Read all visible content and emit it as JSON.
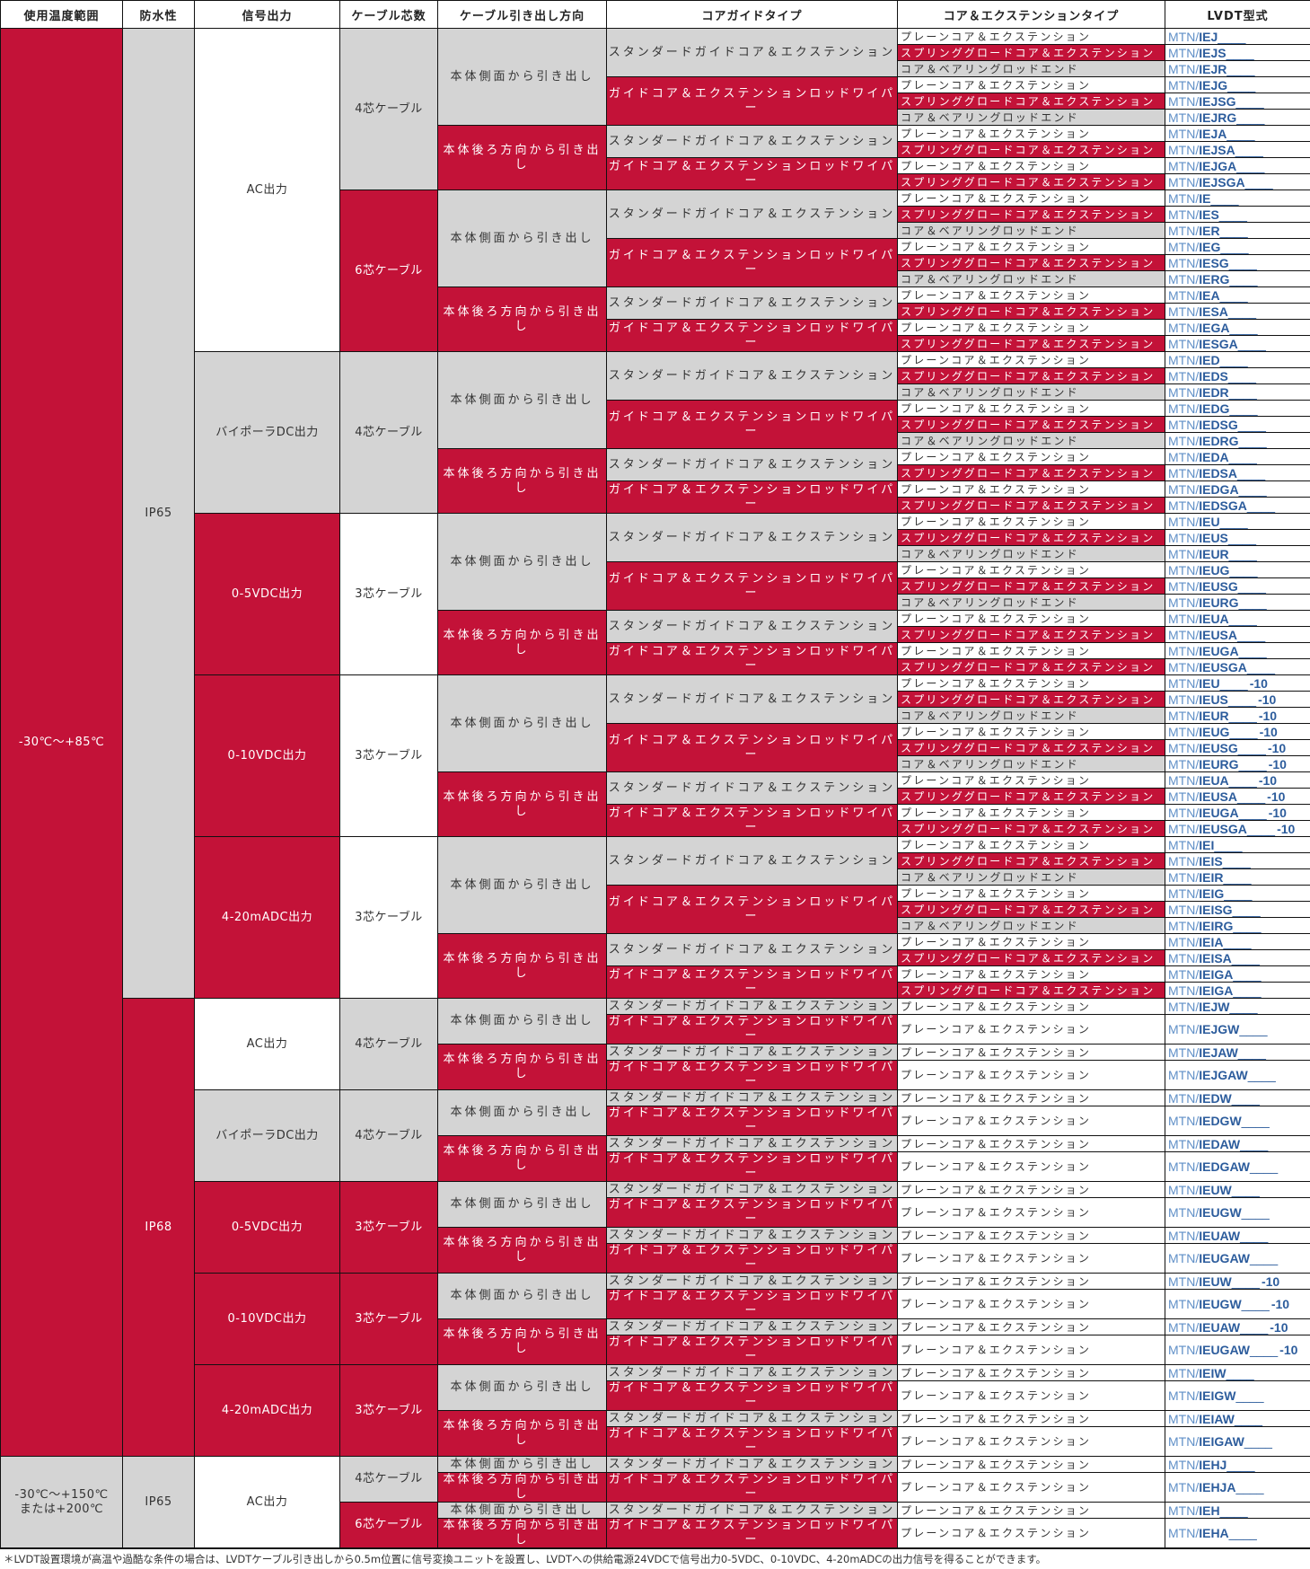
{
  "colors": {
    "red": "#C31238",
    "gray": "#D4D4D4",
    "white": "#FFFFFF"
  },
  "header": [
    "使用温度範囲",
    "防水性",
    "信号出力",
    "ケーブル芯数",
    "ケーブル引き出し方向",
    "コアガイドタイプ",
    "コア＆エクステンションタイプ",
    "LVDT型式"
  ],
  "labels": {
    "side": "本体側面から引き出し",
    "back": "本体後ろ方向から引き出し",
    "std": "スタンダードガイドコア＆エクステンション",
    "guide": "ガイドコア＆エクステンションロッドワイパー"
  },
  "label_colors": {
    "side": "gray",
    "back": "red",
    "std": "gray",
    "guide": "red"
  },
  "ext_types": {
    "P": "プレーンコア＆エクステンション",
    "S": "スプリンググロードコア＆エクステンション",
    "B": "コア＆ベアリングロッドエンド"
  },
  "ext_colors": {
    "P": "white",
    "S": "red",
    "B": "gray"
  },
  "model_prefix": "MTN/",
  "model_blank": "____",
  "columns": {
    "temperature": [
      [
        "-30℃～+85℃",
        80,
        "red"
      ],
      [
        "-30℃～+150℃\nまたは+200℃",
        4,
        "gray"
      ]
    ],
    "waterproof": [
      [
        "IP65",
        60,
        "gray"
      ],
      [
        "IP68",
        20,
        "red"
      ],
      [
        "IP65",
        4,
        "gray"
      ]
    ],
    "signal": [
      [
        "AC出力",
        20,
        "white"
      ],
      [
        "バイポーラDC出力",
        10,
        "gray"
      ],
      [
        "0-5VDC出力",
        10,
        "red"
      ],
      [
        "0-10VDC出力",
        10,
        "red"
      ],
      [
        "4-20mADC出力",
        10,
        "red"
      ],
      [
        "AC出力",
        4,
        "white"
      ],
      [
        "バイポーラDC出力",
        4,
        "gray"
      ],
      [
        "0-5VDC出力",
        4,
        "red"
      ],
      [
        "0-10VDC出力",
        4,
        "red"
      ],
      [
        "4-20mADC出力",
        4,
        "red"
      ],
      [
        "AC出力",
        4,
        "white"
      ]
    ],
    "cable": [
      [
        "4芯ケーブル",
        10,
        "gray"
      ],
      [
        "6芯ケーブル",
        10,
        "red"
      ],
      [
        "4芯ケーブル",
        10,
        "gray"
      ],
      [
        "3芯ケーブル",
        10,
        "white"
      ],
      [
        "3芯ケーブル",
        10,
        "white"
      ],
      [
        "3芯ケーブル",
        10,
        "white"
      ],
      [
        "4芯ケーブル",
        4,
        "gray"
      ],
      [
        "4芯ケーブル",
        4,
        "gray"
      ],
      [
        "3芯ケーブル",
        4,
        "red"
      ],
      [
        "3芯ケーブル",
        4,
        "red"
      ],
      [
        "3芯ケーブル",
        4,
        "red"
      ],
      [
        "4芯ケーブル",
        2,
        "gray"
      ],
      [
        "6芯ケーブル",
        2,
        "red"
      ]
    ],
    "direction": [
      [
        "side",
        6
      ],
      [
        "back",
        4
      ],
      [
        "side",
        6
      ],
      [
        "back",
        4
      ],
      [
        "side",
        6
      ],
      [
        "back",
        4
      ],
      [
        "side",
        6
      ],
      [
        "back",
        4
      ],
      [
        "side",
        6
      ],
      [
        "back",
        4
      ],
      [
        "side",
        6
      ],
      [
        "back",
        4
      ],
      [
        "side",
        2
      ],
      [
        "back",
        2
      ],
      [
        "side",
        2
      ],
      [
        "back",
        2
      ],
      [
        "side",
        2
      ],
      [
        "back",
        2
      ],
      [
        "side",
        2
      ],
      [
        "back",
        2
      ],
      [
        "side",
        2
      ],
      [
        "back",
        2
      ],
      [
        "side",
        1
      ],
      [
        "back",
        1
      ],
      [
        "side",
        1
      ],
      [
        "back",
        1
      ]
    ],
    "guide": [
      [
        "std",
        3
      ],
      [
        "guide",
        3
      ],
      [
        "std",
        2
      ],
      [
        "guide",
        2
      ],
      [
        "std",
        3
      ],
      [
        "guide",
        3
      ],
      [
        "std",
        2
      ],
      [
        "guide",
        2
      ],
      [
        "std",
        3
      ],
      [
        "guide",
        3
      ],
      [
        "std",
        2
      ],
      [
        "guide",
        2
      ],
      [
        "std",
        3
      ],
      [
        "guide",
        3
      ],
      [
        "std",
        2
      ],
      [
        "guide",
        2
      ],
      [
        "std",
        3
      ],
      [
        "guide",
        3
      ],
      [
        "std",
        2
      ],
      [
        "guide",
        2
      ],
      [
        "std",
        3
      ],
      [
        "guide",
        3
      ],
      [
        "std",
        2
      ],
      [
        "guide",
        2
      ],
      [
        "std",
        1
      ],
      [
        "guide",
        1
      ],
      [
        "std",
        1
      ],
      [
        "guide",
        1
      ],
      [
        "std",
        1
      ],
      [
        "guide",
        1
      ],
      [
        "std",
        1
      ],
      [
        "guide",
        1
      ],
      [
        "std",
        1
      ],
      [
        "guide",
        1
      ],
      [
        "std",
        1
      ],
      [
        "guide",
        1
      ],
      [
        "std",
        1
      ],
      [
        "guide",
        1
      ],
      [
        "std",
        1
      ],
      [
        "guide",
        1
      ],
      [
        "std",
        1
      ],
      [
        "guide",
        1
      ],
      [
        "std",
        1
      ],
      [
        "guide",
        1
      ],
      [
        "std",
        1
      ],
      [
        "guide",
        1
      ],
      [
        "std",
        1
      ],
      [
        "guide",
        1
      ],
      [
        "std",
        1
      ],
      [
        "guide",
        1
      ],
      [
        "std",
        1
      ],
      [
        "std",
        1
      ],
      [
        "std",
        1
      ],
      [
        "std",
        1
      ]
    ]
  },
  "rows": [
    [
      "P",
      "IEJ",
      ""
    ],
    [
      "S",
      "IEJS",
      ""
    ],
    [
      "B",
      "IEJR",
      ""
    ],
    [
      "P",
      "IEJG",
      ""
    ],
    [
      "S",
      "IEJSG",
      ""
    ],
    [
      "B",
      "IEJRG",
      ""
    ],
    [
      "P",
      "IEJA",
      ""
    ],
    [
      "S",
      "IEJSA",
      ""
    ],
    [
      "P",
      "IEJGA",
      ""
    ],
    [
      "S",
      "IEJSGA",
      ""
    ],
    [
      "P",
      "IE",
      ""
    ],
    [
      "S",
      "IES",
      ""
    ],
    [
      "B",
      "IER",
      ""
    ],
    [
      "P",
      "IEG",
      ""
    ],
    [
      "S",
      "IESG",
      ""
    ],
    [
      "B",
      "IERG",
      ""
    ],
    [
      "P",
      "IEA",
      ""
    ],
    [
      "S",
      "IESA",
      ""
    ],
    [
      "P",
      "IEGA",
      ""
    ],
    [
      "S",
      "IESGA",
      ""
    ],
    [
      "P",
      "IED",
      ""
    ],
    [
      "S",
      "IEDS",
      ""
    ],
    [
      "B",
      "IEDR",
      ""
    ],
    [
      "P",
      "IEDG",
      ""
    ],
    [
      "S",
      "IEDSG",
      ""
    ],
    [
      "B",
      "IEDRG",
      ""
    ],
    [
      "P",
      "IEDA",
      ""
    ],
    [
      "S",
      "IEDSA",
      ""
    ],
    [
      "P",
      "IEDGA",
      ""
    ],
    [
      "S",
      "IEDSGA",
      ""
    ],
    [
      "P",
      "IEU",
      ""
    ],
    [
      "S",
      "IEUS",
      ""
    ],
    [
      "B",
      "IEUR",
      ""
    ],
    [
      "P",
      "IEUG",
      ""
    ],
    [
      "S",
      "IEUSG",
      ""
    ],
    [
      "B",
      "IEURG",
      ""
    ],
    [
      "P",
      "IEUA",
      ""
    ],
    [
      "S",
      "IEUSA",
      ""
    ],
    [
      "P",
      "IEUGA",
      ""
    ],
    [
      "S",
      "IEUSGA",
      ""
    ],
    [
      "P",
      "IEU",
      "-10"
    ],
    [
      "S",
      "IEUS",
      "-10"
    ],
    [
      "B",
      "IEUR",
      "-10"
    ],
    [
      "P",
      "IEUG",
      "-10"
    ],
    [
      "S",
      "IEUSG",
      "-10"
    ],
    [
      "B",
      "IEURG",
      "-10"
    ],
    [
      "P",
      "IEUA",
      "-10"
    ],
    [
      "S",
      "IEUSA",
      "-10"
    ],
    [
      "P",
      "IEUGA",
      "-10"
    ],
    [
      "S",
      "IEUSGA",
      "-10"
    ],
    [
      "P",
      "IEI",
      ""
    ],
    [
      "S",
      "IEIS",
      ""
    ],
    [
      "B",
      "IEIR",
      ""
    ],
    [
      "P",
      "IEIG",
      ""
    ],
    [
      "S",
      "IEISG",
      ""
    ],
    [
      "B",
      "IEIRG",
      ""
    ],
    [
      "P",
      "IEIA",
      ""
    ],
    [
      "S",
      "IEISA",
      ""
    ],
    [
      "P",
      "IEIGA",
      ""
    ],
    [
      "S",
      "IEIGA",
      ""
    ],
    [
      "P",
      "IEJW",
      ""
    ],
    [
      "P",
      "IEJGW",
      ""
    ],
    [
      "P",
      "IEJAW",
      ""
    ],
    [
      "P",
      "IEJGAW",
      ""
    ],
    [
      "P",
      "IEDW",
      ""
    ],
    [
      "P",
      "IEDGW",
      ""
    ],
    [
      "P",
      "IEDAW",
      ""
    ],
    [
      "P",
      "IEDGAW",
      ""
    ],
    [
      "P",
      "IEUW",
      ""
    ],
    [
      "P",
      "IEUGW",
      ""
    ],
    [
      "P",
      "IEUAW",
      ""
    ],
    [
      "P",
      "IEUGAW",
      ""
    ],
    [
      "P",
      "IEUW",
      "-10"
    ],
    [
      "P",
      "IEUGW",
      "-10"
    ],
    [
      "P",
      "IEUAW",
      "-10"
    ],
    [
      "P",
      "IEUGAW",
      "-10"
    ],
    [
      "P",
      "IEIW",
      ""
    ],
    [
      "P",
      "IEIGW",
      ""
    ],
    [
      "P",
      "IEIAW",
      ""
    ],
    [
      "P",
      "IEIGAW",
      ""
    ],
    [
      "P",
      "IEHJ",
      ""
    ],
    [
      "P",
      "IEHJA",
      ""
    ],
    [
      "P",
      "IEH",
      ""
    ],
    [
      "P",
      "IEHA",
      ""
    ]
  ],
  "footnote": "＊LVDT設置環境が高温や過酷な条件の場合は、LVDTケーブル引き出しから0.5m位置に信号変換ユニットを設置し、LVDTへの供給電源24VDCで信号出力0-5VDC、0-10VDC、4-20mADCの出力信号を得ることができます。"
}
